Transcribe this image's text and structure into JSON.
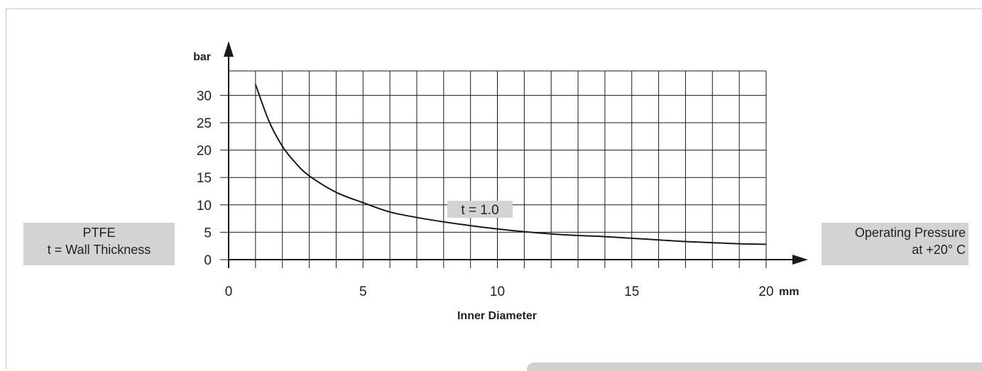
{
  "chart_data": {
    "type": "line",
    "xlabel": "Inner Diameter",
    "ylabel": "bar",
    "x_unit": "mm",
    "xlim": [
      0,
      20
    ],
    "ylim": [
      0,
      35
    ],
    "x_ticks": [
      "0",
      "5",
      "10",
      "15",
      "20"
    ],
    "y_ticks": [
      "0",
      "5",
      "10",
      "15",
      "20",
      "25",
      "30"
    ],
    "grid": true,
    "series": [
      {
        "name": "t = 1.0",
        "x": [
          1,
          1.5,
          2,
          2.5,
          3,
          4,
          5,
          6,
          7,
          8,
          9,
          10,
          11,
          12,
          13,
          14,
          15,
          16,
          17,
          18,
          19,
          20
        ],
        "y": [
          32,
          25.3,
          20.7,
          17.6,
          15.3,
          12.3,
          10.4,
          8.7,
          7.7,
          6.9,
          6.2,
          5.6,
          5.1,
          4.7,
          4.4,
          4.2,
          3.9,
          3.6,
          3.3,
          3.1,
          2.9,
          2.8
        ]
      }
    ],
    "annotation": "t = 1.0"
  },
  "left_box": {
    "line1": "PTFE",
    "line2": "t = Wall Thickness"
  },
  "right_box": {
    "line1": "Operating Pressure",
    "line2": "at +20° C"
  },
  "colors": {
    "line": "#1a1a1a",
    "grid": "#1a1a1a",
    "label_box": "#d3d3d3"
  }
}
